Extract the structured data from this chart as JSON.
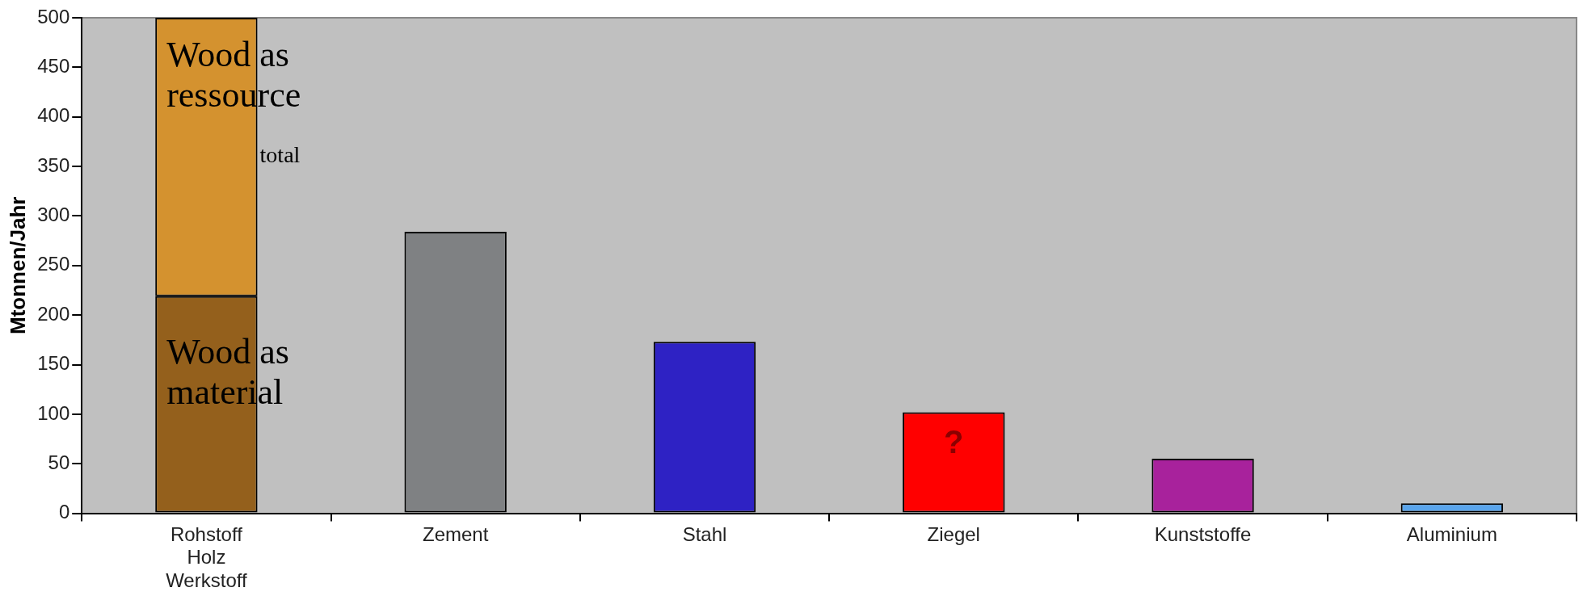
{
  "chart_data": {
    "type": "bar",
    "ylabel": "Mtonnen/Jahr",
    "categories": [
      "Rohstoff Holz Werkstoff",
      "Zement",
      "Stahl",
      "Ziegel",
      "Kunststoffe",
      "Aluminium"
    ],
    "stacked": true,
    "series": [
      {
        "colors": [
          "#94601c",
          "#7f8183",
          "#2e22c4",
          "#ff0000",
          "#a8229c",
          "#5aa5ec"
        ],
        "values": [
          219,
          284,
          173,
          102,
          55,
          10
        ]
      },
      {
        "color": "#d4922f",
        "values": [
          281,
          null,
          null,
          null,
          null,
          null
        ]
      }
    ],
    "ylim": [
      0,
      500
    ],
    "yticks": [
      0,
      50,
      100,
      150,
      200,
      250,
      300,
      350,
      400,
      450,
      500
    ],
    "annotations": [
      "Wood as ressource",
      "total",
      "Wood as material",
      "?"
    ]
  }
}
